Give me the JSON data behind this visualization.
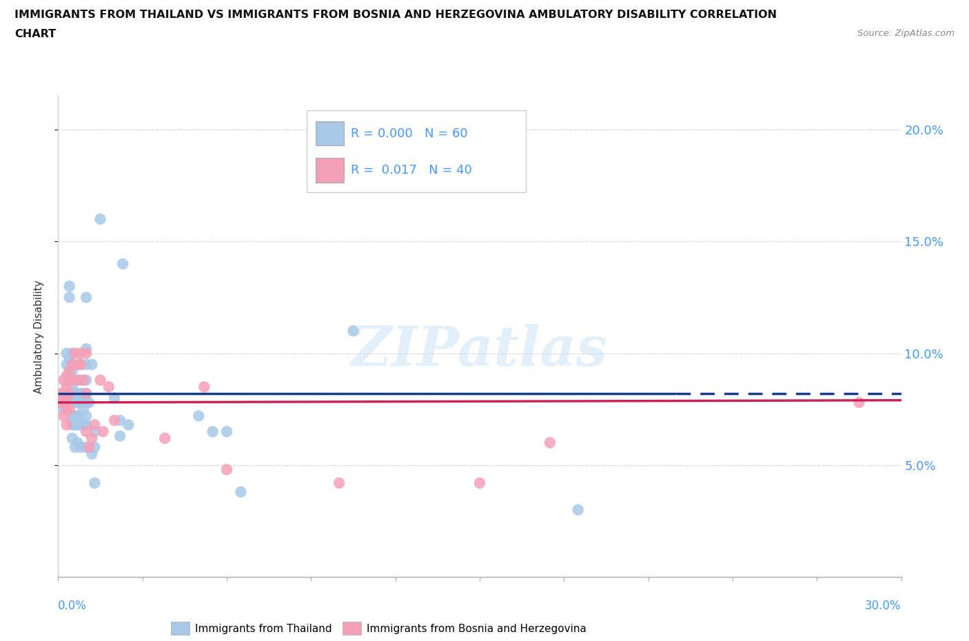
{
  "title_line1": "IMMIGRANTS FROM THAILAND VS IMMIGRANTS FROM BOSNIA AND HERZEGOVINA AMBULATORY DISABILITY CORRELATION",
  "title_line2": "CHART",
  "source": "Source: ZipAtlas.com",
  "ylabel": "Ambulatory Disability",
  "y_ticks": [
    0.05,
    0.1,
    0.15,
    0.2
  ],
  "y_tick_labels": [
    "5.0%",
    "10.0%",
    "15.0%",
    "20.0%"
  ],
  "xlim": [
    0.0,
    0.3
  ],
  "ylim": [
    0.0,
    0.215
  ],
  "color_thailand": "#a8c8e8",
  "color_bosnia": "#f4a0b8",
  "trendline_thailand_color": "#1a3a8c",
  "trendline_bosnia_color": "#cc2255",
  "watermark": "ZIPatlas",
  "thailand_trendline_y": 0.082,
  "thailand_trendline_solid_end": 0.22,
  "bosnia_trendline_y_start": 0.078,
  "bosnia_trendline_y_end": 0.079,
  "thailand_points": [
    [
      0.002,
      0.075
    ],
    [
      0.003,
      0.1
    ],
    [
      0.003,
      0.095
    ],
    [
      0.004,
      0.13
    ],
    [
      0.004,
      0.125
    ],
    [
      0.004,
      0.098
    ],
    [
      0.005,
      0.1
    ],
    [
      0.005,
      0.092
    ],
    [
      0.005,
      0.085
    ],
    [
      0.005,
      0.08
    ],
    [
      0.005,
      0.072
    ],
    [
      0.005,
      0.068
    ],
    [
      0.005,
      0.062
    ],
    [
      0.006,
      0.088
    ],
    [
      0.006,
      0.082
    ],
    [
      0.006,
      0.078
    ],
    [
      0.006,
      0.072
    ],
    [
      0.006,
      0.068
    ],
    [
      0.006,
      0.058
    ],
    [
      0.007,
      0.082
    ],
    [
      0.007,
      0.078
    ],
    [
      0.007,
      0.072
    ],
    [
      0.007,
      0.068
    ],
    [
      0.007,
      0.06
    ],
    [
      0.008,
      0.095
    ],
    [
      0.008,
      0.088
    ],
    [
      0.008,
      0.082
    ],
    [
      0.008,
      0.078
    ],
    [
      0.008,
      0.068
    ],
    [
      0.008,
      0.058
    ],
    [
      0.009,
      0.082
    ],
    [
      0.009,
      0.075
    ],
    [
      0.009,
      0.068
    ],
    [
      0.01,
      0.125
    ],
    [
      0.01,
      0.102
    ],
    [
      0.01,
      0.095
    ],
    [
      0.01,
      0.088
    ],
    [
      0.01,
      0.082
    ],
    [
      0.01,
      0.078
    ],
    [
      0.01,
      0.072
    ],
    [
      0.01,
      0.068
    ],
    [
      0.01,
      0.058
    ],
    [
      0.011,
      0.078
    ],
    [
      0.012,
      0.095
    ],
    [
      0.012,
      0.055
    ],
    [
      0.013,
      0.065
    ],
    [
      0.013,
      0.058
    ],
    [
      0.013,
      0.042
    ],
    [
      0.015,
      0.16
    ],
    [
      0.02,
      0.08
    ],
    [
      0.022,
      0.07
    ],
    [
      0.022,
      0.063
    ],
    [
      0.023,
      0.14
    ],
    [
      0.025,
      0.068
    ],
    [
      0.05,
      0.072
    ],
    [
      0.055,
      0.065
    ],
    [
      0.06,
      0.065
    ],
    [
      0.065,
      0.038
    ],
    [
      0.105,
      0.11
    ],
    [
      0.185,
      0.03
    ]
  ],
  "bosnia_points": [
    [
      0.001,
      0.082
    ],
    [
      0.001,
      0.078
    ],
    [
      0.002,
      0.088
    ],
    [
      0.002,
      0.082
    ],
    [
      0.002,
      0.078
    ],
    [
      0.002,
      0.072
    ],
    [
      0.003,
      0.09
    ],
    [
      0.003,
      0.085
    ],
    [
      0.003,
      0.08
    ],
    [
      0.003,
      0.075
    ],
    [
      0.003,
      0.068
    ],
    [
      0.004,
      0.092
    ],
    [
      0.004,
      0.088
    ],
    [
      0.004,
      0.082
    ],
    [
      0.004,
      0.075
    ],
    [
      0.005,
      0.095
    ],
    [
      0.005,
      0.088
    ],
    [
      0.006,
      0.1
    ],
    [
      0.007,
      0.095
    ],
    [
      0.007,
      0.088
    ],
    [
      0.008,
      0.1
    ],
    [
      0.008,
      0.095
    ],
    [
      0.009,
      0.088
    ],
    [
      0.01,
      0.1
    ],
    [
      0.01,
      0.082
    ],
    [
      0.01,
      0.065
    ],
    [
      0.011,
      0.058
    ],
    [
      0.012,
      0.062
    ],
    [
      0.013,
      0.068
    ],
    [
      0.015,
      0.088
    ],
    [
      0.016,
      0.065
    ],
    [
      0.018,
      0.085
    ],
    [
      0.02,
      0.07
    ],
    [
      0.038,
      0.062
    ],
    [
      0.052,
      0.085
    ],
    [
      0.06,
      0.048
    ],
    [
      0.1,
      0.042
    ],
    [
      0.15,
      0.042
    ],
    [
      0.175,
      0.06
    ],
    [
      0.285,
      0.078
    ]
  ]
}
